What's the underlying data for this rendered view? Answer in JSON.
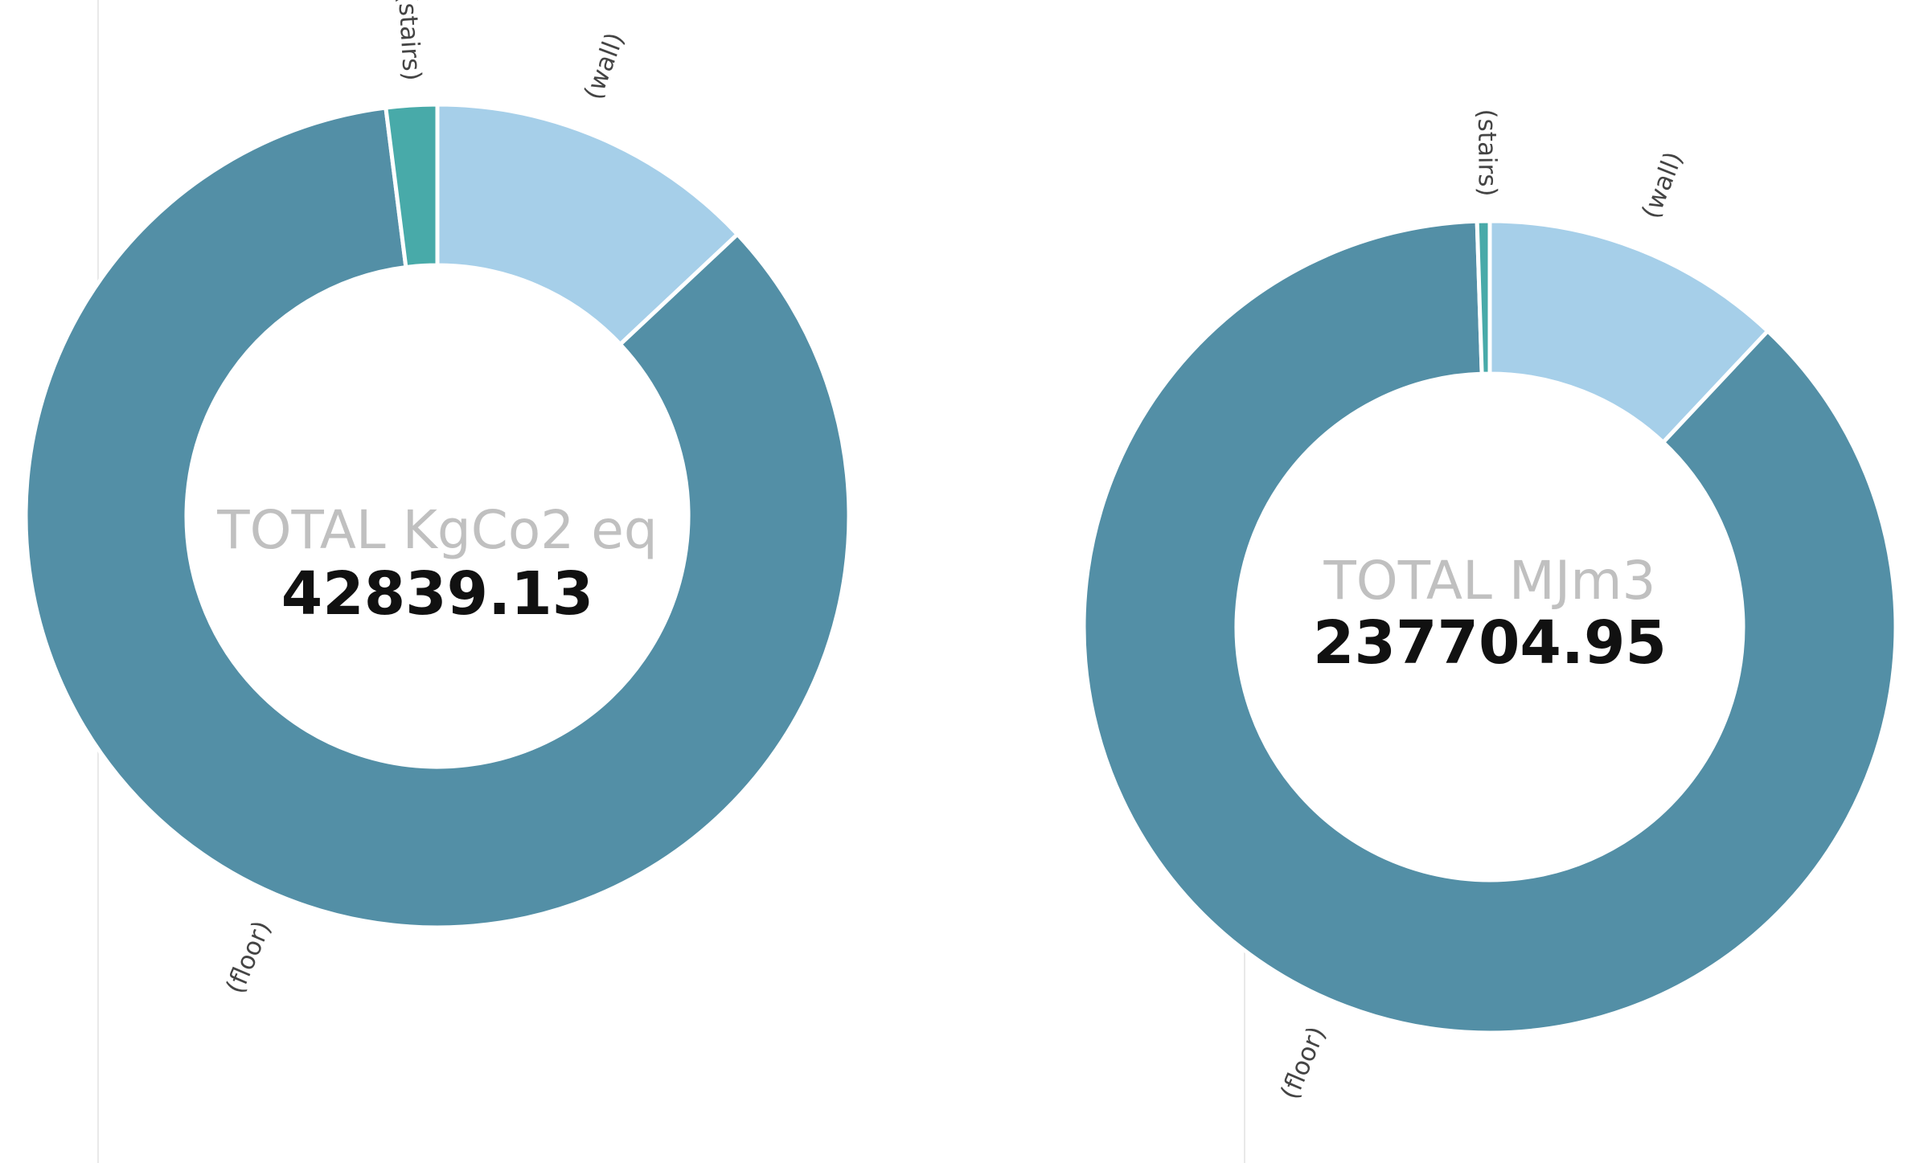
{
  "chart_data": [
    {
      "type": "pie",
      "variant": "donut",
      "center_title": "TOTAL KgCo2 eq",
      "center_value": "42839.13",
      "slices": [
        {
          "label": "(wall)",
          "share": 0.13,
          "color": "#a6cfe9"
        },
        {
          "label": "(floor)",
          "share": 0.85,
          "color": "#538fa6"
        },
        {
          "label": "(stairs)",
          "share": 0.02,
          "color": "#48aaa9"
        }
      ]
    },
    {
      "type": "pie",
      "variant": "donut",
      "center_title": "TOTAL MJm3",
      "center_value": "237704.95",
      "slices": [
        {
          "label": "(wall)",
          "share": 0.12,
          "color": "#a6cfe9"
        },
        {
          "label": "(floor)",
          "share": 0.875,
          "color": "#538fa6"
        },
        {
          "label": "(stairs)",
          "share": 0.005,
          "color": "#48aaa9"
        }
      ]
    }
  ]
}
